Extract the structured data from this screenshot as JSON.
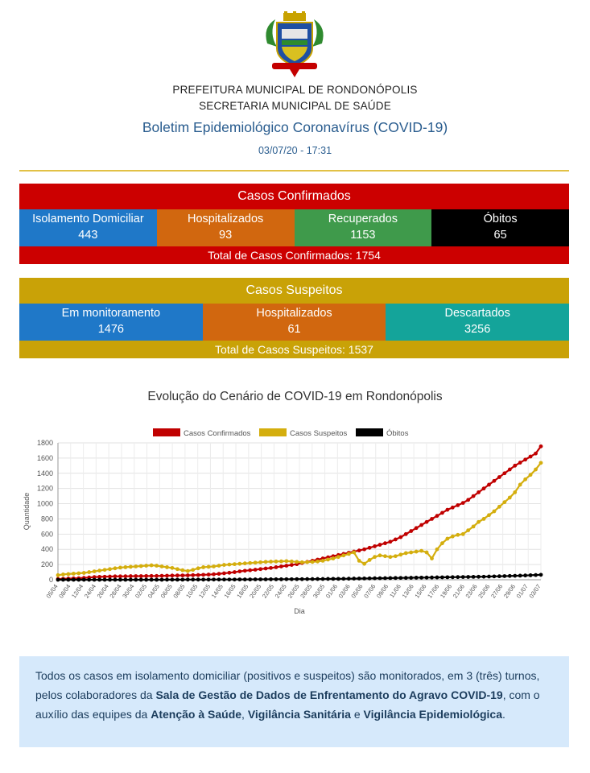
{
  "header": {
    "line1": "PREFEITURA MUNICIPAL DE RONDONÓPOLIS",
    "line2": "SECRETARIA MUNICIPAL DE SAÚDE",
    "title": "Boletim Epidemiológico Coronavírus (COVID-19)",
    "date": "03/07/20 - 17:31"
  },
  "confirmed": {
    "title": "Casos Confirmados",
    "cells": [
      {
        "label": "Isolamento Domiciliar",
        "value": "443"
      },
      {
        "label": "Hospitalizados",
        "value": "93"
      },
      {
        "label": "Recuperados",
        "value": "1153"
      },
      {
        "label": "Óbitos",
        "value": "65"
      }
    ],
    "total": "Total de Casos Confirmados: 1754"
  },
  "suspected": {
    "title": "Casos Suspeitos",
    "cells": [
      {
        "label": "Em monitoramento",
        "value": "1476"
      },
      {
        "label": "Hospitalizados",
        "value": "61"
      },
      {
        "label": "Descartados",
        "value": "3256"
      }
    ],
    "total": "Total de Casos Suspeitos: 1537"
  },
  "chart_title": "Evolução do Cenário de COVID-19 em Rondonópolis",
  "chart_data": {
    "type": "line",
    "xlabel": "Dia",
    "ylabel": "Quantidade",
    "ylim": [
      0,
      1800
    ],
    "yticks": [
      0,
      200,
      400,
      600,
      800,
      1000,
      1200,
      1400,
      1600,
      1800
    ],
    "grid": true,
    "legend": "top-center",
    "xticks": [
      "05/04",
      "08/04",
      "12/04",
      "24/04",
      "26/04",
      "28/04",
      "30/04",
      "02/05",
      "04/05",
      "06/05",
      "08/05",
      "10/05",
      "12/05",
      "14/05",
      "16/05",
      "18/05",
      "20/05",
      "22/05",
      "24/05",
      "26/05",
      "28/05",
      "30/05",
      "01/06",
      "03/06",
      "05/06",
      "07/06",
      "09/06",
      "11/06",
      "13/06",
      "15/06",
      "17/06",
      "19/06",
      "21/06",
      "23/06",
      "25/06",
      "27/06",
      "29/06",
      "01/07",
      "03/07"
    ],
    "series": [
      {
        "name": "Casos Confirmados",
        "color": "#c00000",
        "values": [
          10,
          12,
          15,
          18,
          20,
          25,
          30,
          35,
          38,
          40,
          42,
          45,
          45,
          46,
          47,
          48,
          48,
          49,
          50,
          50,
          52,
          53,
          55,
          56,
          57,
          58,
          60,
          62,
          65,
          68,
          72,
          78,
          85,
          92,
          100,
          110,
          118,
          125,
          132,
          140,
          148,
          155,
          165,
          175,
          185,
          195,
          205,
          220,
          235,
          250,
          265,
          280,
          295,
          310,
          325,
          340,
          355,
          370,
          385,
          400,
          420,
          440,
          460,
          480,
          500,
          530,
          560,
          600,
          640,
          680,
          720,
          760,
          800,
          840,
          880,
          920,
          950,
          980,
          1010,
          1050,
          1100,
          1150,
          1200,
          1250,
          1300,
          1350,
          1400,
          1450,
          1500,
          1540,
          1580,
          1620,
          1660,
          1754
        ]
      },
      {
        "name": "Casos Suspeitos",
        "color": "#d4ae0e",
        "values": [
          60,
          70,
          75,
          80,
          85,
          90,
          100,
          110,
          120,
          130,
          140,
          150,
          160,
          165,
          170,
          175,
          180,
          185,
          190,
          185,
          175,
          165,
          155,
          140,
          125,
          115,
          130,
          150,
          165,
          170,
          175,
          185,
          195,
          200,
          205,
          210,
          215,
          220,
          225,
          230,
          235,
          238,
          240,
          242,
          245,
          240,
          235,
          230,
          232,
          235,
          240,
          250,
          265,
          280,
          300,
          320,
          340,
          360,
          250,
          210,
          260,
          300,
          320,
          310,
          300,
          310,
          330,
          350,
          360,
          370,
          380,
          360,
          280,
          400,
          480,
          540,
          570,
          590,
          600,
          650,
          700,
          760,
          800,
          850,
          900,
          960,
          1020,
          1080,
          1150,
          1250,
          1320,
          1380,
          1450,
          1537
        ]
      },
      {
        "name": "Óbitos",
        "color": "#000000",
        "values": [
          0,
          0,
          0,
          0,
          0,
          0,
          0,
          0,
          0,
          0,
          0,
          0,
          0,
          0,
          0,
          0,
          0,
          0,
          0,
          0,
          0,
          1,
          1,
          1,
          1,
          2,
          2,
          2,
          2,
          2,
          3,
          3,
          3,
          3,
          3,
          4,
          4,
          4,
          5,
          5,
          5,
          6,
          6,
          6,
          7,
          7,
          8,
          8,
          9,
          9,
          10,
          10,
          11,
          12,
          12,
          13,
          14,
          15,
          16,
          17,
          18,
          19,
          20,
          21,
          22,
          23,
          24,
          25,
          26,
          27,
          28,
          29,
          30,
          31,
          32,
          33,
          34,
          35,
          36,
          37,
          38,
          39,
          40,
          42,
          44,
          46,
          48,
          50,
          52,
          54,
          56,
          59,
          62,
          65
        ]
      }
    ]
  },
  "note": {
    "p1": "Todos os casos em isolamento domiciliar (positivos e suspeitos) são monitorados, em 3 (três) turnos, pelos colaboradores da ",
    "b1": "Sala de Gestão de Dados de Enfrentamento do Agravo COVID-19",
    "p2": ", com o auxílio das equipes da ",
    "b2": "Atenção à Saúde",
    "p3": ", ",
    "b3": "Vigilância Sanitária",
    "p4": " e ",
    "b4": "Vigilância Epidemiológica",
    "p5": "."
  }
}
